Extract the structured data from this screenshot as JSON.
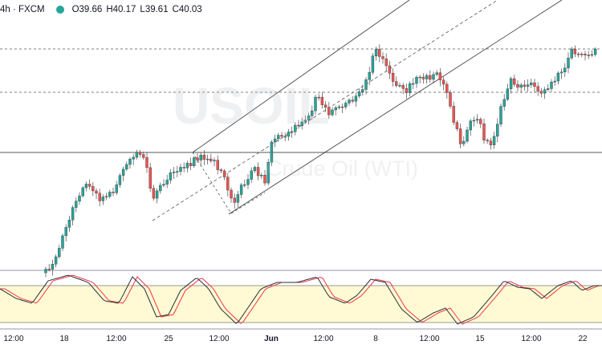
{
  "header": {
    "symbol_text": "4h · FXCM",
    "open": "O39.66",
    "high": "H40.17",
    "low": "L39.61",
    "close": "C40.03"
  },
  "watermark": {
    "symbol": "USOIL",
    "description": "Crude Oil (WTI)"
  },
  "time_axis": {
    "labels": [
      {
        "text": "12:00",
        "bold": false
      },
      {
        "text": "18",
        "bold": false
      },
      {
        "text": "12:00",
        "bold": false
      },
      {
        "text": "25",
        "bold": false
      },
      {
        "text": "12:00",
        "bold": false
      },
      {
        "text": "Jun",
        "bold": true
      },
      {
        "text": "12:00",
        "bold": false
      },
      {
        "text": "8",
        "bold": false
      },
      {
        "text": "12:00",
        "bold": false
      },
      {
        "text": "15",
        "bold": false
      },
      {
        "text": "12:00",
        "bold": false
      },
      {
        "text": "22",
        "bold": false
      }
    ]
  },
  "colors": {
    "up": "#26a69a",
    "down": "#ef5350",
    "stoch_k": "#2a2e39",
    "stoch_d": "#f23645",
    "stoch_band": "#fff59d"
  }
}
